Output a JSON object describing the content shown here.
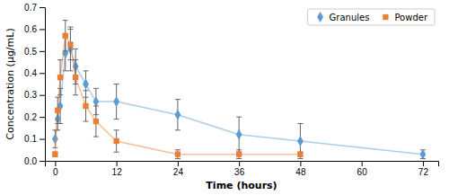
{
  "chart_data": {
    "type": "line",
    "xlabel": "Time (hours)",
    "ylabel": "Concentration (μg/mL)",
    "xlim": [
      -2,
      75
    ],
    "xticks": [
      0,
      12,
      24,
      36,
      48,
      60,
      72
    ],
    "ylim": [
      0,
      0.7
    ],
    "yticks": [
      {
        "value": 0,
        "label": "0.0"
      },
      0.1,
      0.2,
      0.3,
      0.4,
      0.5,
      0.6,
      0.7
    ],
    "legend": "upper right",
    "series": [
      {
        "name": "Granules",
        "color": "#5b9bd5",
        "marker": "diamond",
        "x": [
          0,
          0.5,
          1,
          2,
          3,
          4,
          6,
          8,
          12,
          24,
          36,
          48,
          72
        ],
        "values": [
          0.1,
          0.19,
          0.25,
          0.49,
          0.51,
          0.43,
          0.35,
          0.27,
          0.27,
          0.21,
          0.12,
          0.09,
          0.03
        ],
        "errors": [
          0.04,
          0.05,
          0.08,
          0.08,
          0.1,
          0.08,
          0.06,
          0.06,
          0.08,
          0.07,
          0.08,
          0.08,
          0.02
        ]
      },
      {
        "name": "Powder",
        "color": "#ed7d31",
        "marker": "square",
        "x": [
          0,
          0.5,
          1,
          2,
          3,
          4,
          6,
          8,
          12,
          24,
          36,
          48
        ],
        "values": [
          0.03,
          0.23,
          0.38,
          0.57,
          0.53,
          0.38,
          0.25,
          0.18,
          0.09,
          0.03,
          0.03,
          0.03
        ],
        "errors": [
          0.01,
          0.06,
          0.08,
          0.07,
          0.07,
          0.08,
          0.07,
          0.07,
          0.05,
          0.02,
          0.02,
          0.01
        ]
      }
    ]
  }
}
